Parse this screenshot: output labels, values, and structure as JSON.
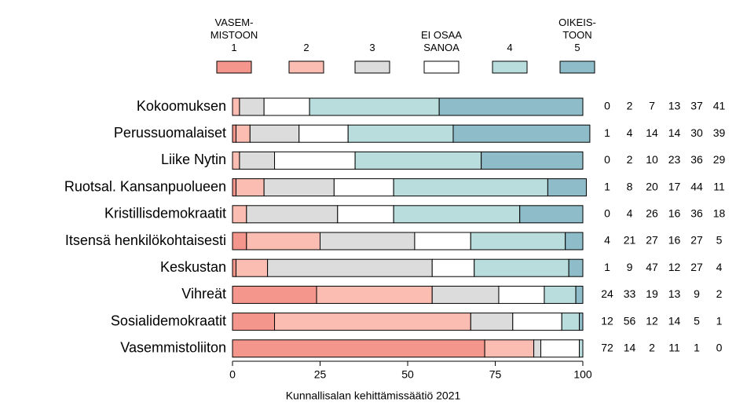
{
  "chart_data": {
    "type": "stacked_barh",
    "source": "Kunnallisalan kehittämissäätiö 2021",
    "categories": [
      "Kokoomuksen",
      "Perussuomalaiset",
      "Liike Nytin",
      "Ruotsal. Kansanpuolueen",
      "Kristillisdemokraatit",
      "Itsensä henkilökohtaisesti",
      "Keskustan",
      "Vihreät",
      "Sosialidemokraatit",
      "Vasemmistoliiton"
    ],
    "series": [
      {
        "name": "VASEM-\nMISTOON\n1",
        "color": "#f4968b",
        "values": [
          0,
          1,
          0,
          1,
          0,
          4,
          1,
          24,
          12,
          72
        ]
      },
      {
        "name": "2",
        "color": "#fbbcb1",
        "values": [
          2,
          4,
          2,
          8,
          4,
          21,
          9,
          33,
          56,
          14
        ]
      },
      {
        "name": "3",
        "color": "#dcdcdc",
        "values": [
          7,
          14,
          10,
          20,
          26,
          27,
          47,
          19,
          12,
          2
        ]
      },
      {
        "name": "EI OSAA\nSANOA",
        "color": "#ffffff",
        "values": [
          13,
          14,
          23,
          17,
          16,
          16,
          12,
          13,
          14,
          11
        ]
      },
      {
        "name": "4",
        "color": "#b9dcdc",
        "values": [
          37,
          30,
          36,
          44,
          36,
          27,
          27,
          9,
          5,
          1
        ]
      },
      {
        "name": "OIKEIS-\nTOON\n5",
        "color": "#8ebcc8",
        "values": [
          41,
          39,
          29,
          11,
          18,
          5,
          4,
          2,
          1,
          0
        ]
      }
    ],
    "xlim": [
      0,
      100
    ],
    "xticks": [
      0,
      25,
      50,
      75,
      100
    ]
  }
}
